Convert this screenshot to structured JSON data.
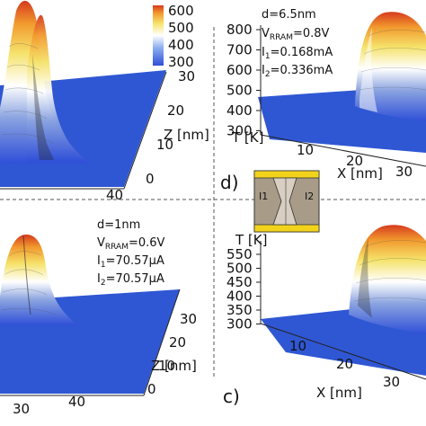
{
  "colorbar": {
    "ticks": [
      "600",
      "500",
      "400",
      "300"
    ]
  },
  "chart_data": [
    {
      "type": "surface",
      "panel": "top-left",
      "z_axis": {
        "label": "",
        "ticks": []
      },
      "depth_axis": {
        "label": "Z [nm]",
        "ticks": [
          "30",
          "20",
          "10",
          "0"
        ]
      },
      "x_axis": {
        "label": "",
        "ticks": [
          "40"
        ]
      },
      "peaks": [
        {
          "rel_x": 0.5,
          "value": 620
        },
        {
          "rel_x": 0.62,
          "value": 620
        }
      ],
      "base_value": 300,
      "annotations": []
    },
    {
      "type": "surface",
      "panel": "top-right",
      "label": "d)",
      "z_axis": {
        "label": "T [K]",
        "ticks": [
          "800",
          "700",
          "600",
          "500",
          "400",
          "300"
        ]
      },
      "depth_axis": {
        "label": "",
        "ticks": []
      },
      "x_axis": {
        "label": "X [nm]",
        "ticks": [
          "10",
          "20",
          "30"
        ]
      },
      "peaks": [
        {
          "rel_x": 0.85,
          "value": 880
        }
      ],
      "base_value": 300,
      "annotations": [
        {
          "main": "d=6.5nm",
          "sub": ""
        },
        {
          "main": "V",
          "sub": "RRAM",
          "suffix": "=0.8V"
        },
        {
          "main": "I",
          "sub": "1",
          "suffix": "=0.168mA"
        },
        {
          "main": "I",
          "sub": "2",
          "suffix": "=0.336mA"
        }
      ]
    },
    {
      "type": "surface",
      "panel": "bottom-left",
      "z_axis": {
        "label": "",
        "ticks": []
      },
      "depth_axis": {
        "label": "Z [nm]",
        "ticks": [
          "30",
          "20",
          "10",
          "0"
        ]
      },
      "x_axis": {
        "label": "",
        "ticks": [
          "30",
          "40"
        ]
      },
      "peaks": [
        {
          "rel_x": 0.55,
          "value": 580
        },
        {
          "rel_x": 0.62,
          "value": 580
        }
      ],
      "base_value": 300,
      "annotations": [
        {
          "main": "d=1nm",
          "sub": ""
        },
        {
          "main": "V",
          "sub": "RRAM",
          "suffix": "=0.6V"
        },
        {
          "main": "I",
          "sub": "1",
          "suffix": "=70.57μA"
        },
        {
          "main": "I",
          "sub": "2",
          "suffix": "=70.57μA"
        }
      ]
    },
    {
      "type": "surface",
      "panel": "bottom-right",
      "label": "c)",
      "z_axis": {
        "label": "T [K]",
        "ticks": [
          "550",
          "500",
          "450",
          "400",
          "350",
          "300"
        ]
      },
      "depth_axis": {
        "label": "",
        "ticks": []
      },
      "x_axis": {
        "label": "X [nm]",
        "ticks": [
          "10",
          "20",
          "30"
        ]
      },
      "peaks": [
        {
          "rel_x": 0.8,
          "value": 560
        }
      ],
      "base_value": 300,
      "annotations": []
    }
  ],
  "inset": {
    "labels": [
      "I1",
      "I2"
    ]
  }
}
